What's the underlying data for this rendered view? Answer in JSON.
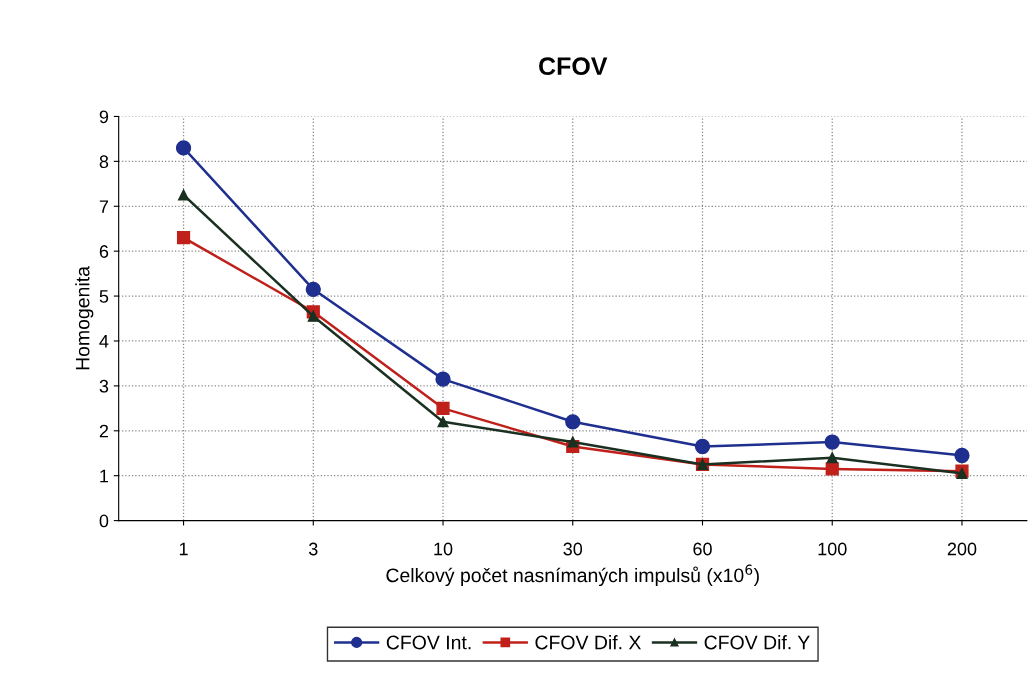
{
  "chart_data": {
    "type": "line",
    "title": "CFOV",
    "xlabel": "Celkový počet nasnímaných impulsů (x10$^{6}$)",
    "ylabel": "Homogenita",
    "categories": [
      "1",
      "3",
      "10",
      "30",
      "60",
      "100",
      "200"
    ],
    "series": [
      {
        "name": "CFOV Int.",
        "color": "#1f2f8f",
        "marker": "circle",
        "values": [
          8.3,
          5.15,
          3.15,
          2.2,
          1.65,
          1.75,
          1.45
        ]
      },
      {
        "name": "CFOV Dif. X",
        "color": "#c0201a",
        "marker": "square",
        "values": [
          6.3,
          4.65,
          2.5,
          1.65,
          1.25,
          1.15,
          1.1
        ]
      },
      {
        "name": "CFOV Dif. Y",
        "color": "#1a3020",
        "marker": "triangle",
        "values": [
          7.25,
          4.55,
          2.2,
          1.75,
          1.25,
          1.4,
          1.05
        ]
      }
    ],
    "ylim": [
      0,
      9
    ],
    "yticks": [
      0,
      1,
      2,
      3,
      4,
      5,
      6,
      7,
      8,
      9
    ],
    "grid": true,
    "legend": "bottom",
    "line_style": "solid"
  }
}
